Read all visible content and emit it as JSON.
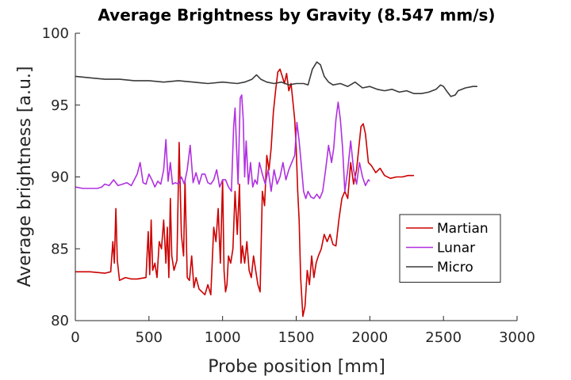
{
  "chart_data": {
    "type": "line",
    "title": "Average Brightness by Gravity (8.547 mm/s)",
    "xlabel": "Probe position [mm]",
    "ylabel": "Average brightness [a.u.]",
    "xlim": [
      0,
      3000
    ],
    "ylim": [
      80,
      100
    ],
    "xticks": [
      0,
      500,
      1000,
      1500,
      2000,
      2500,
      3000
    ],
    "yticks": [
      80,
      85,
      90,
      95,
      100
    ],
    "grid": false,
    "legend_position": "lower-right",
    "series": [
      {
        "name": "Martian",
        "color": "#cc0000",
        "x": [
          0,
          100,
          200,
          240,
          255,
          265,
          275,
          285,
          300,
          320,
          340,
          380,
          420,
          480,
          495,
          505,
          515,
          525,
          540,
          555,
          570,
          585,
          600,
          615,
          625,
          635,
          645,
          655,
          670,
          690,
          705,
          720,
          735,
          745,
          760,
          775,
          790,
          805,
          820,
          840,
          860,
          880,
          900,
          920,
          940,
          955,
          970,
          985,
          1000,
          1010,
          1020,
          1030,
          1040,
          1055,
          1070,
          1085,
          1100,
          1115,
          1125,
          1135,
          1150,
          1165,
          1180,
          1195,
          1210,
          1225,
          1240,
          1255,
          1270,
          1285,
          1300,
          1315,
          1330,
          1345,
          1360,
          1375,
          1390,
          1405,
          1420,
          1435,
          1450,
          1465,
          1480,
          1490,
          1500,
          1510,
          1520,
          1530,
          1545,
          1560,
          1575,
          1590,
          1605,
          1620,
          1635,
          1650,
          1670,
          1690,
          1710,
          1730,
          1750,
          1770,
          1790,
          1810,
          1830,
          1850,
          1870,
          1890,
          1910,
          1925,
          1940,
          1955,
          1970,
          1990,
          2010,
          2040,
          2070,
          2100,
          2140,
          2180,
          2220,
          2260,
          2300
        ],
        "y": [
          83.4,
          83.4,
          83.3,
          83.4,
          85.5,
          84.0,
          87.8,
          84.2,
          82.8,
          82.9,
          83.0,
          82.9,
          82.9,
          83.0,
          86.2,
          83.2,
          87.0,
          83.5,
          84.0,
          83.0,
          85.5,
          85.0,
          87.0,
          84.0,
          86.5,
          83.0,
          88.5,
          84.5,
          83.5,
          84.2,
          92.4,
          86.0,
          84.5,
          89.8,
          83.0,
          82.8,
          84.5,
          82.3,
          83.0,
          82.2,
          82.0,
          81.8,
          82.5,
          81.8,
          86.5,
          85.5,
          87.8,
          84.0,
          89.8,
          83.5,
          82.0,
          82.5,
          84.5,
          84.0,
          85.0,
          89.0,
          86.0,
          89.5,
          84.0,
          85.2,
          84.0,
          85.5,
          83.5,
          83.0,
          84.5,
          83.5,
          82.5,
          82.0,
          89.0,
          88.0,
          91.5,
          90.5,
          92.0,
          94.5,
          96.0,
          97.3,
          97.5,
          97.0,
          96.5,
          97.2,
          96.0,
          96.5,
          95.0,
          94.0,
          92.0,
          89.0,
          87.0,
          83.0,
          80.3,
          81.0,
          83.5,
          82.5,
          84.5,
          83.0,
          84.0,
          84.5,
          85.0,
          86.0,
          85.5,
          86.0,
          85.3,
          85.2,
          87.0,
          88.5,
          89.0,
          88.5,
          91.0,
          89.5,
          90.5,
          92.0,
          93.5,
          93.7,
          93.0,
          91.0,
          90.8,
          90.3,
          90.6,
          90.1,
          89.9,
          90.0,
          90.0,
          90.1,
          90.1
        ]
      },
      {
        "name": "Lunar",
        "color": "#b030e0",
        "x": [
          0,
          50,
          100,
          150,
          180,
          200,
          230,
          260,
          290,
          320,
          350,
          380,
          400,
          420,
          440,
          460,
          480,
          500,
          520,
          540,
          560,
          580,
          600,
          615,
          630,
          645,
          660,
          680,
          700,
          720,
          740,
          760,
          780,
          800,
          820,
          840,
          860,
          880,
          900,
          920,
          940,
          960,
          980,
          1000,
          1020,
          1040,
          1060,
          1075,
          1085,
          1095,
          1105,
          1120,
          1130,
          1140,
          1150,
          1160,
          1175,
          1190,
          1205,
          1220,
          1235,
          1250,
          1270,
          1290,
          1310,
          1330,
          1350,
          1370,
          1390,
          1410,
          1430,
          1450,
          1470,
          1490,
          1505,
          1520,
          1535,
          1550,
          1565,
          1580,
          1600,
          1620,
          1640,
          1660,
          1680,
          1700,
          1720,
          1740,
          1755,
          1770,
          1785,
          1800,
          1815,
          1830,
          1850,
          1870,
          1890,
          1910,
          1930,
          1950,
          1970,
          1990,
          2000
        ],
        "y": [
          89.3,
          89.2,
          89.2,
          89.2,
          89.3,
          89.5,
          89.4,
          89.8,
          89.4,
          89.5,
          89.6,
          89.4,
          89.8,
          90.2,
          91.0,
          89.6,
          89.5,
          90.2,
          89.8,
          89.3,
          89.7,
          89.5,
          90.5,
          92.6,
          89.7,
          91.0,
          89.5,
          89.6,
          89.5,
          90.0,
          89.5,
          90.5,
          92.2,
          89.6,
          90.3,
          89.5,
          90.2,
          90.2,
          89.6,
          89.5,
          89.8,
          90.5,
          89.3,
          89.8,
          89.8,
          89.3,
          89.0,
          93.5,
          94.8,
          92.0,
          89.5,
          95.5,
          95.7,
          94.0,
          90.0,
          92.5,
          89.5,
          91.0,
          89.3,
          89.8,
          89.5,
          91.0,
          90.2,
          89.5,
          90.5,
          89.0,
          90.5,
          89.5,
          90.0,
          91.0,
          89.8,
          90.5,
          91.0,
          91.5,
          93.8,
          92.5,
          90.8,
          89.0,
          88.5,
          89.0,
          88.6,
          88.5,
          88.8,
          88.5,
          89.0,
          90.5,
          92.2,
          91.0,
          92.0,
          94.0,
          95.2,
          94.0,
          92.0,
          89.0,
          90.5,
          92.5,
          90.5,
          89.5,
          91.0,
          90.0,
          89.4,
          89.8,
          89.7
        ]
      },
      {
        "name": "Micro",
        "color": "#3a3a3a",
        "x": [
          0,
          100,
          200,
          300,
          400,
          500,
          600,
          700,
          800,
          900,
          1000,
          1100,
          1150,
          1200,
          1230,
          1260,
          1300,
          1350,
          1400,
          1450,
          1500,
          1550,
          1580,
          1610,
          1640,
          1665,
          1690,
          1720,
          1750,
          1800,
          1850,
          1900,
          1950,
          2000,
          2050,
          2100,
          2150,
          2200,
          2250,
          2300,
          2350,
          2400,
          2450,
          2480,
          2500,
          2520,
          2550,
          2580,
          2600,
          2650,
          2700,
          2730
        ],
        "y": [
          97.0,
          96.9,
          96.8,
          96.8,
          96.7,
          96.7,
          96.6,
          96.7,
          96.6,
          96.5,
          96.6,
          96.5,
          96.6,
          96.8,
          97.1,
          96.8,
          96.6,
          96.5,
          96.6,
          96.4,
          96.5,
          96.5,
          96.4,
          97.5,
          98.0,
          97.8,
          97.0,
          96.6,
          96.4,
          96.5,
          96.3,
          96.6,
          96.2,
          96.3,
          96.1,
          96.0,
          96.1,
          95.9,
          96.0,
          95.8,
          95.8,
          95.9,
          96.1,
          96.4,
          96.3,
          96.0,
          95.6,
          95.7,
          96.0,
          96.2,
          96.3,
          96.3
        ]
      }
    ]
  }
}
